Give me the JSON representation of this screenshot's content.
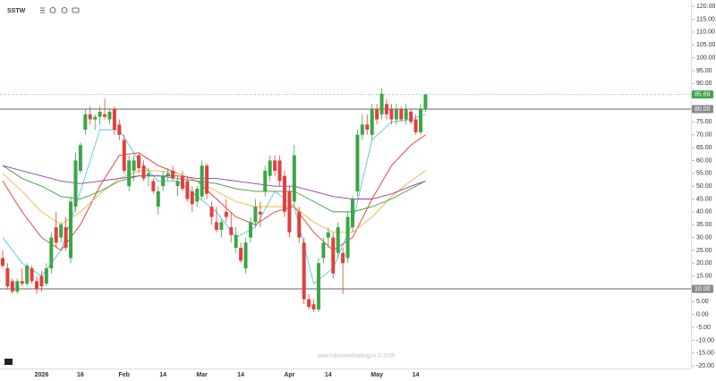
{
  "chart_data": {
    "type": "candlestick",
    "title": "SSTW",
    "watermark": "www.fullmarkettrading.ru © 2025",
    "categories": [
      null,
      null,
      null,
      null,
      null,
      null,
      null,
      null,
      "2026",
      null,
      null,
      null,
      null,
      null,
      null,
      null,
      "16",
      null,
      null,
      null,
      null,
      null,
      null,
      null,
      null,
      "Feb",
      null,
      null,
      null,
      null,
      null,
      null,
      null,
      "14",
      null,
      null,
      null,
      null,
      null,
      null,
      null,
      "Mar",
      null,
      null,
      null,
      null,
      null,
      null,
      null,
      "14",
      null,
      null,
      null,
      null,
      null,
      null,
      null,
      null,
      null,
      "Apr",
      null,
      null,
      null,
      null,
      null,
      null,
      null,
      "14",
      null,
      null,
      null,
      null,
      null,
      null,
      null,
      null,
      null,
      "May",
      null,
      null,
      null,
      null,
      null,
      null,
      null,
      "14",
      null,
      null
    ],
    "open": [
      22,
      18,
      13,
      9,
      13,
      12,
      18,
      13,
      15,
      12,
      18,
      34,
      30,
      34,
      22,
      42,
      56,
      72,
      78,
      76,
      77,
      78,
      76,
      80,
      74,
      68,
      50,
      56,
      62,
      58,
      54,
      52,
      42,
      50,
      54,
      56,
      50,
      54,
      52,
      48,
      44,
      46,
      58,
      42,
      36,
      33,
      40,
      34,
      26,
      26,
      18,
      30,
      36,
      40,
      48,
      54,
      60,
      60,
      54,
      48,
      44,
      40,
      28,
      6,
      4,
      2,
      22,
      30,
      30,
      24,
      24,
      22,
      34,
      48,
      70,
      74,
      70,
      80,
      78,
      82,
      80,
      76,
      80,
      76,
      79,
      76,
      71,
      80
    ],
    "high": [
      25,
      20,
      14,
      14,
      18,
      20,
      19,
      15,
      17,
      20,
      32,
      40,
      36,
      38,
      46,
      63,
      67,
      80,
      81,
      78,
      81,
      84,
      80,
      81,
      76,
      70,
      62,
      62,
      63,
      60,
      57,
      53,
      50,
      56,
      57,
      58,
      54,
      56,
      54,
      50,
      50,
      60,
      59,
      44,
      42,
      37,
      45,
      40,
      34,
      28,
      30,
      38,
      45,
      44,
      58,
      62,
      62,
      62,
      56,
      50,
      66,
      42,
      30,
      8,
      6,
      22,
      30,
      34,
      32,
      36,
      26,
      40,
      46,
      72,
      78,
      78,
      82,
      82,
      88,
      84,
      82,
      82,
      81,
      82,
      80,
      78,
      82,
      86
    ],
    "low": [
      18,
      10,
      8,
      8,
      11,
      11,
      12,
      8,
      9,
      11,
      16,
      26,
      28,
      25,
      20,
      40,
      55,
      70,
      74,
      72,
      74,
      76,
      74,
      70,
      68,
      55,
      48,
      52,
      55,
      52,
      50,
      47,
      39,
      48,
      52,
      52,
      46,
      48,
      44,
      40,
      42,
      45,
      45,
      35,
      32,
      30,
      36,
      28,
      24,
      20,
      16,
      28,
      34,
      34,
      46,
      52,
      54,
      50,
      38,
      30,
      42,
      28,
      4,
      2,
      1,
      1,
      20,
      26,
      14,
      22,
      8,
      20,
      32,
      46,
      68,
      70,
      68,
      74,
      76,
      76,
      74,
      74,
      75,
      74,
      74,
      70,
      70,
      79
    ],
    "close": [
      19,
      11,
      9,
      13,
      12,
      19,
      13,
      10,
      11,
      18,
      30,
      28,
      35,
      26,
      44,
      60,
      66,
      78,
      76,
      77,
      79,
      77,
      79,
      72,
      70,
      56,
      60,
      60,
      57,
      53,
      55,
      48,
      48,
      54,
      55,
      53,
      52,
      49,
      45,
      43,
      49,
      58,
      47,
      38,
      33,
      36,
      38,
      31,
      31,
      21,
      28,
      36,
      42,
      39,
      56,
      60,
      56,
      52,
      40,
      32,
      62,
      30,
      6,
      3,
      2,
      20,
      28,
      32,
      16,
      34,
      20,
      38,
      45,
      70,
      74,
      72,
      80,
      76,
      86,
      78,
      76,
      80,
      76,
      80,
      75,
      71,
      80,
      85.69
    ],
    "up_color": "#3ca548",
    "down_color": "#e2403c",
    "lines": [
      {
        "color": "#4fc9dc",
        "x": [
          0,
          4,
          8,
          12,
          16,
          20,
          24,
          28,
          32,
          36,
          40,
          44,
          48,
          52,
          56,
          60,
          64,
          68,
          72,
          76,
          80,
          84,
          87
        ],
        "values": [
          30,
          20,
          15,
          25,
          48,
          72,
          72,
          60,
          52,
          52,
          46,
          40,
          30,
          34,
          48,
          42,
          12,
          18,
          36,
          68,
          75,
          76,
          78
        ]
      },
      {
        "color": "#e53935",
        "x": [
          0,
          4,
          8,
          12,
          16,
          20,
          24,
          28,
          32,
          36,
          40,
          44,
          48,
          52,
          56,
          60,
          64,
          68,
          72,
          76,
          80,
          84,
          87
        ],
        "values": [
          52,
          40,
          30,
          25,
          35,
          50,
          62,
          63,
          58,
          55,
          52,
          45,
          38,
          35,
          40,
          42,
          32,
          25,
          30,
          45,
          58,
          66,
          70
        ]
      },
      {
        "color": "#f2b440",
        "x": [
          0,
          4,
          8,
          12,
          16,
          20,
          24,
          28,
          32,
          36,
          40,
          44,
          48,
          52,
          56,
          60,
          64,
          68,
          72,
          76,
          80,
          84,
          87
        ],
        "values": [
          55,
          48,
          40,
          35,
          40,
          47,
          53,
          56,
          56,
          55,
          52,
          48,
          44,
          42,
          42,
          42,
          36,
          32,
          32,
          38,
          46,
          52,
          56
        ]
      },
      {
        "color": "#3f9a48",
        "x": [
          0,
          4,
          8,
          12,
          16,
          20,
          24,
          28,
          32,
          36,
          40,
          44,
          48,
          52,
          56,
          60,
          64,
          68,
          72,
          76,
          80,
          84,
          87
        ],
        "values": [
          58,
          53,
          50,
          46,
          45,
          48,
          52,
          54,
          54,
          53,
          52,
          51,
          49,
          48,
          48,
          48,
          44,
          40,
          40,
          42,
          45,
          49,
          52
        ]
      },
      {
        "color": "#8e3fa8",
        "x": [
          0,
          4,
          8,
          12,
          16,
          20,
          24,
          28,
          32,
          36,
          40,
          44,
          48,
          52,
          56,
          60,
          64,
          68,
          72,
          76,
          80,
          84,
          87
        ],
        "values": [
          58,
          56,
          54,
          52,
          51,
          52,
          53,
          54,
          54,
          54,
          53,
          53,
          52,
          51,
          50,
          50,
          48,
          46,
          45,
          45,
          47,
          50,
          52
        ]
      }
    ],
    "levels": [
      {
        "value": 80,
        "label": "80.00"
      },
      {
        "value": 10,
        "label": "10.00"
      }
    ],
    "last_price": {
      "value": 85.69,
      "label": "85.69"
    },
    "ylim": [
      -21,
      122.5
    ],
    "yticks": [
      {
        "value": 120,
        "label": "120.00"
      },
      {
        "value": 115,
        "label": "115.00"
      },
      {
        "value": 110,
        "label": "110.00"
      },
      {
        "value": 105,
        "label": "105.00"
      },
      {
        "value": 100,
        "label": "100.00"
      },
      {
        "value": 95,
        "label": "95.00"
      },
      {
        "value": 90,
        "label": "90.00"
      },
      {
        "value": 85,
        "label": "85.00"
      },
      {
        "value": 80,
        "label": "80.00"
      },
      {
        "value": 75,
        "label": "75.00"
      },
      {
        "value": 70,
        "label": "70.00"
      },
      {
        "value": 65,
        "label": "65.00"
      },
      {
        "value": 60,
        "label": "60.00"
      },
      {
        "value": 55,
        "label": "55.00"
      },
      {
        "value": 50,
        "label": "50.00"
      },
      {
        "value": 45,
        "label": "45.00"
      },
      {
        "value": 40,
        "label": "40.00"
      },
      {
        "value": 35,
        "label": "35.00"
      },
      {
        "value": 30,
        "label": "30.00"
      },
      {
        "value": 25,
        "label": "25.00"
      },
      {
        "value": 20,
        "label": "20.00"
      },
      {
        "value": 15,
        "label": "15.00"
      },
      {
        "value": 10,
        "label": "10.00"
      },
      {
        "value": 5,
        "label": "5.00"
      },
      {
        "value": 0,
        "label": "0.00"
      },
      {
        "value": -5,
        "label": "-5.00"
      },
      {
        "value": -10,
        "label": "-10.00"
      },
      {
        "value": -15,
        "label": "-15.00"
      },
      {
        "value": -20,
        "label": "-20.00"
      }
    ],
    "grid": false
  }
}
